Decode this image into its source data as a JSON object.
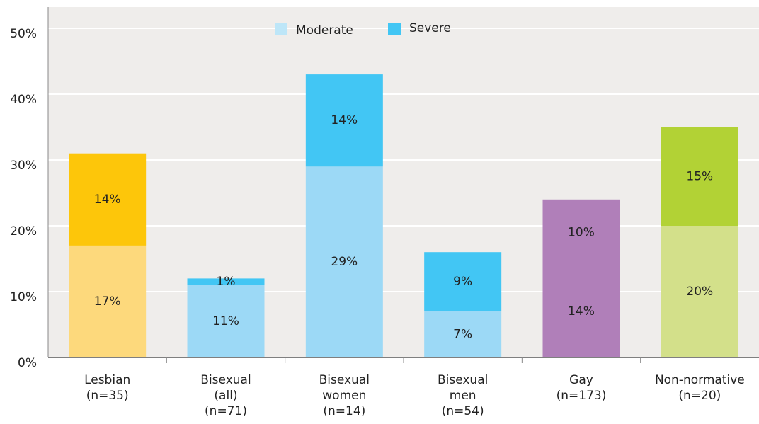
{
  "chart_data": {
    "type": "stacked_bar",
    "categories": [
      "Lesbian (n=35)",
      "Bisexual (all) (n=71)",
      "Bisexual women (n=14)",
      "Bisexual men (n=54)",
      "Gay (n=173)",
      "Non-normative (n=20)"
    ],
    "series": [
      {
        "name": "Moderate",
        "color": "#bde6f8",
        "point_colors": [
          "#fdd97c",
          "#9cd9f6",
          "#9cd9f6",
          "#9cd9f6",
          "#b07fb9",
          "#d3e08a"
        ],
        "values": [
          17,
          11,
          29,
          7,
          14,
          20
        ],
        "value_labels": [
          "17%",
          "11%",
          "29%",
          "7%",
          "14%",
          "20%"
        ]
      },
      {
        "name": "Severe",
        "color": "#42c6f4",
        "point_colors": [
          "#fdc60a",
          "#42c6f4",
          "#42c6f4",
          "#42c6f4",
          "#b07fb9",
          "#b2d235"
        ],
        "values": [
          14,
          1,
          14,
          9,
          10,
          15
        ],
        "value_labels": [
          "14%",
          "1%",
          "14%",
          "9%",
          "10%",
          "15%"
        ]
      }
    ],
    "ylim": [
      0,
      50
    ],
    "yticks": [
      {
        "value": 0,
        "label": "0%"
      },
      {
        "value": 10,
        "label": "10%"
      },
      {
        "value": 20,
        "label": "20%"
      },
      {
        "value": 30,
        "label": "30%"
      },
      {
        "value": 40,
        "label": "40%"
      },
      {
        "value": 50,
        "label": "50%"
      }
    ],
    "grid": true,
    "legend": "top"
  }
}
